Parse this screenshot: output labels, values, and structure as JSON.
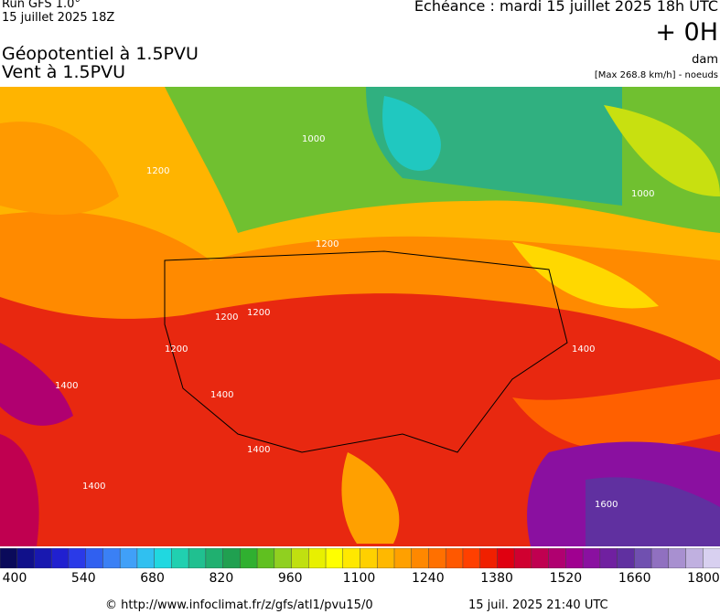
{
  "header": {
    "run": "Run GFS 1.0°",
    "run_date": "15 juillet 2025 18Z",
    "title": "Géopotentiel à 1.5PVU",
    "subtitle": "Vent à 1.5PVU",
    "valid": "Echéance : mardi 15 juillet 2025 18h UTC",
    "lead": "+ 0H",
    "unit": "dam",
    "max": "[Max 268.8 km/h] - noeuds"
  },
  "map": {
    "contour_labels": [
      "1000",
      "1000",
      "1200",
      "1200",
      "1200",
      "1200",
      "1200",
      "1400",
      "1400",
      "1400",
      "1400",
      "1400",
      "1600"
    ]
  },
  "colorbar": {
    "colors": [
      "#0a0a5a",
      "#10108a",
      "#1818b0",
      "#2020d0",
      "#2a3ae8",
      "#3060f0",
      "#3a80f5",
      "#40a0f8",
      "#30c0f0",
      "#20d8e0",
      "#20d0b0",
      "#20c090",
      "#20b070",
      "#20a050",
      "#30b030",
      "#60c020",
      "#90d020",
      "#c0e010",
      "#e8f000",
      "#ffff00",
      "#ffe800",
      "#ffd000",
      "#ffb800",
      "#ffa000",
      "#ff8800",
      "#ff7000",
      "#ff5800",
      "#ff4000",
      "#f02000",
      "#e00010",
      "#d00030",
      "#c00050",
      "#b00070",
      "#a00090",
      "#8a10a0",
      "#7020a0",
      "#6030a0",
      "#7050b0",
      "#9070c0",
      "#a890d0",
      "#c0b0e0",
      "#d8d0f0"
    ],
    "labels": [
      400,
      540,
      680,
      820,
      960,
      1100,
      1240,
      1380,
      1520,
      1660,
      1800
    ]
  },
  "footer": {
    "url": "© http://www.infoclimat.fr/z/gfs/atl1/pvu15/0",
    "generated": "15 juil. 2025 21:40 UTC"
  }
}
